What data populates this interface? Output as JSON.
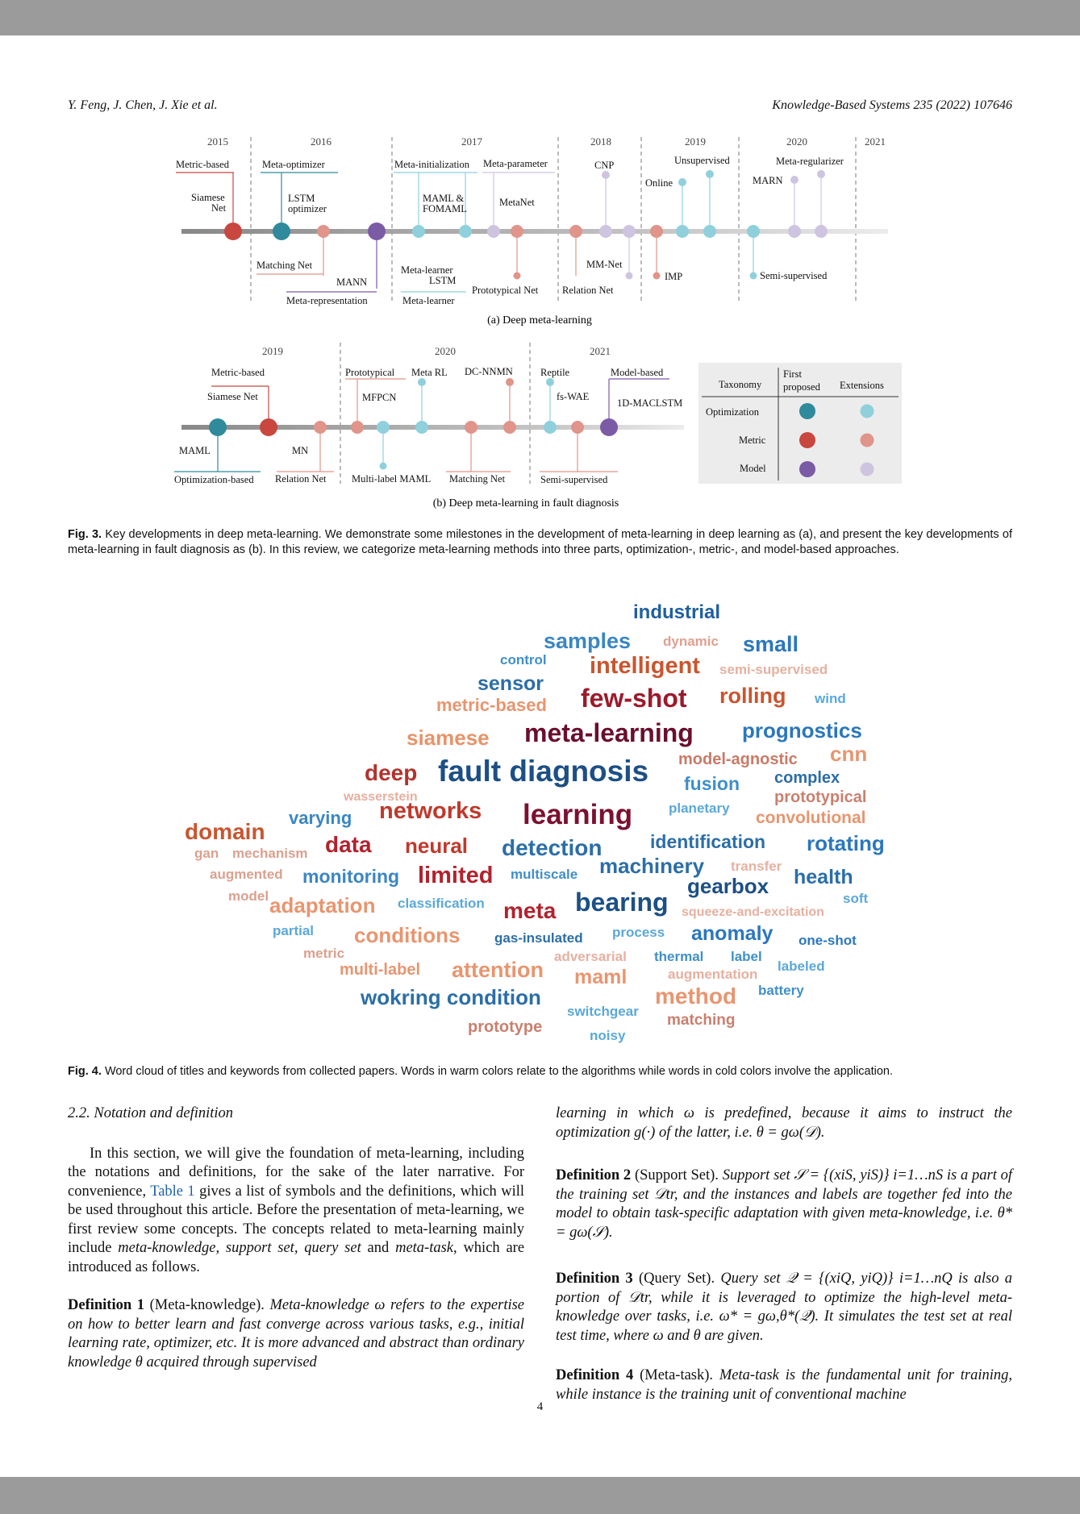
{
  "header": {
    "left": "Y. Feng, J. Chen, J. Xie et al.",
    "right": "Knowledge-Based Systems 235 (2022) 107646"
  },
  "fig3a": {
    "years": [
      "2015",
      "2016",
      "2017",
      "2018",
      "2019",
      "2020",
      "2021"
    ],
    "labels": {
      "metric_based": "Metric-based",
      "meta_optimizer": "Meta-optimizer",
      "meta_initialization": "Meta-initialization",
      "meta_parameter": "Meta-parameter",
      "cnp": "CNP",
      "unsupervised": "Unsupervised",
      "online": "Online",
      "meta_regularizer": "Meta-regularizer",
      "marn": "MARN",
      "siamese_net_1": "Siamese",
      "siamese_net_2": "Net",
      "lstm_opt_1": "LSTM",
      "lstm_opt_2": "optimizer",
      "maml_1": "MAML &",
      "maml_2": "FOMAML",
      "metanet": "MetaNet",
      "matching_net": "Matching Net",
      "mann": "MANN",
      "meta_representation": "Meta-representation",
      "meta_learner_lstm_1": "Meta-learner",
      "meta_learner_lstm_2": "LSTM",
      "meta_learner": "Meta-learner",
      "prototypical_net": "Prototypical Net",
      "relation_net": "Relation Net",
      "mm_net": "MM-Net",
      "imp": "IMP",
      "semi_supervised": "Semi-supervised"
    },
    "caption": "(a) Deep meta-learning"
  },
  "fig3b": {
    "years": [
      "2019",
      "2020",
      "2021"
    ],
    "labels": {
      "metric_based": "Metric-based",
      "siamese_net": "Siamese Net",
      "prototypical": "Prototypical",
      "mfpcn": "MFPCN",
      "meta_rl": "Meta RL",
      "dc_nnmn": "DC-NNMN",
      "reptile": "Reptile",
      "fs_wae": "fs-WAE",
      "model_based": "Model-based",
      "maclstm": "1D-MACLSTM",
      "maml": "MAML",
      "mn": "MN",
      "optimization_based": "Optimization-based",
      "relation_net": "Relation Net",
      "multi_label_maml": "Multi-label MAML",
      "matching_net": "Matching Net",
      "semi_supervised": "Semi-supervised"
    },
    "legend": {
      "taxonomy": "Taxonomy",
      "first_1": "First",
      "first_2": "proposed",
      "extensions": "Extensions",
      "rows": [
        "Optimization",
        "Metric",
        "Model"
      ]
    },
    "caption": "(b) Deep meta-learning in fault diagnosis"
  },
  "colors": {
    "optimization": "#2f8a9c",
    "optimization_ext": "#8fd0dc",
    "metric": "#c8473f",
    "metric_ext": "#e0948a",
    "model": "#7b5aa6",
    "model_ext": "#cfc4e0"
  },
  "fig3_caption": {
    "label": "Fig. 3.",
    "text": "Key developments in deep meta-learning. We demonstrate some milestones in the development of meta-learning in deep learning as (a), and present the key developments of meta-learning in fault diagnosis as (b). In this review, we categorize meta-learning methods into three parts, optimization-, metric-, and model-based approaches."
  },
  "wordcloud": {
    "words": [
      {
        "t": "industrial",
        "c": "#1f5fa0"
      },
      {
        "t": "samples",
        "c": "#3a86c4"
      },
      {
        "t": "dynamic",
        "c": "#e0a090"
      },
      {
        "t": "small",
        "c": "#2b77bd"
      },
      {
        "t": "control",
        "c": "#3f8fc9"
      },
      {
        "t": "intelligent",
        "c": "#c9552f"
      },
      {
        "t": "semi-supervised",
        "c": "#e6b0a0"
      },
      {
        "t": "sensor",
        "c": "#2b6ea8"
      },
      {
        "t": "metric-based",
        "c": "#e8956f"
      },
      {
        "t": "few-shot",
        "c": "#9c1a2c"
      },
      {
        "t": "rolling",
        "c": "#c9552f"
      },
      {
        "t": "wind",
        "c": "#5aa8d8"
      },
      {
        "t": "siamese",
        "c": "#e8936a"
      },
      {
        "t": "meta-learning",
        "c": "#6b0e2e"
      },
      {
        "t": "prognostics",
        "c": "#2b77bd"
      },
      {
        "t": "model-agnostic",
        "c": "#c97a67"
      },
      {
        "t": "cnn",
        "c": "#e8956f"
      },
      {
        "t": "deep",
        "c": "#b3332c"
      },
      {
        "t": "fault diagnosis",
        "c": "#1c4f85"
      },
      {
        "t": "fusion",
        "c": "#3f8fc9"
      },
      {
        "t": "complex",
        "c": "#2b6ea8"
      },
      {
        "t": "wasserstein",
        "c": "#e6b0a0"
      },
      {
        "t": "prototypical",
        "c": "#c9806f"
      },
      {
        "t": "varying",
        "c": "#3a86c4"
      },
      {
        "t": "networks",
        "c": "#c0392b"
      },
      {
        "t": "learning",
        "c": "#7b1030"
      },
      {
        "t": "planetary",
        "c": "#5aa8d8"
      },
      {
        "t": "convolutional",
        "c": "#e8956f"
      },
      {
        "t": "domain",
        "c": "#c9552f"
      },
      {
        "t": "data",
        "c": "#b3222c"
      },
      {
        "t": "neural",
        "c": "#c0392b"
      },
      {
        "t": "detection",
        "c": "#2b6ea8"
      },
      {
        "t": "identification",
        "c": "#2b6ea8"
      },
      {
        "t": "rotating",
        "c": "#2b77bd"
      },
      {
        "t": "gan",
        "c": "#dba08f"
      },
      {
        "t": "mechanism",
        "c": "#dba08f"
      },
      {
        "t": "machinery",
        "c": "#2b6ea8"
      },
      {
        "t": "transfer",
        "c": "#e6b0a0"
      },
      {
        "t": "augmented",
        "c": "#dba08f"
      },
      {
        "t": "monitoring",
        "c": "#3a86c4"
      },
      {
        "t": "limited",
        "c": "#b3222c"
      },
      {
        "t": "multiscale",
        "c": "#3f8fc9"
      },
      {
        "t": "gearbox",
        "c": "#1c4f85"
      },
      {
        "t": "health",
        "c": "#2b6ea8"
      },
      {
        "t": "model",
        "c": "#dba08f"
      },
      {
        "t": "soft",
        "c": "#5aa8d8"
      },
      {
        "t": "adaptation",
        "c": "#e8956f"
      },
      {
        "t": "classification",
        "c": "#5aa8d8"
      },
      {
        "t": "meta",
        "c": "#b3222c"
      },
      {
        "t": "bearing",
        "c": "#1c4f85"
      },
      {
        "t": "squeeze-and-excitation",
        "c": "#e6b0a0"
      },
      {
        "t": "partial",
        "c": "#5aa8d8"
      },
      {
        "t": "conditions",
        "c": "#e8956f"
      },
      {
        "t": "gas-insulated",
        "c": "#2b6ea8"
      },
      {
        "t": "process",
        "c": "#5aa8d8"
      },
      {
        "t": "anomaly",
        "c": "#2b77bd"
      },
      {
        "t": "one-shot",
        "c": "#2b77bd"
      },
      {
        "t": "metric",
        "c": "#dba08f"
      },
      {
        "t": "adversarial",
        "c": "#e6b0a0"
      },
      {
        "t": "thermal",
        "c": "#3f8fc9"
      },
      {
        "t": "label",
        "c": "#3f8fc9"
      },
      {
        "t": "labeled",
        "c": "#5aa8d8"
      },
      {
        "t": "multi-label",
        "c": "#e8956f"
      },
      {
        "t": "attention",
        "c": "#e8956f"
      },
      {
        "t": "maml",
        "c": "#e8956f"
      },
      {
        "t": "augmentation",
        "c": "#e6b0a0"
      },
      {
        "t": "battery",
        "c": "#3f8fc9"
      },
      {
        "t": "wokring condition",
        "c": "#2b6ea8"
      },
      {
        "t": "method",
        "c": "#e8956f"
      },
      {
        "t": "switchgear",
        "c": "#5aa8d8"
      },
      {
        "t": "matching",
        "c": "#c9806f"
      },
      {
        "t": "prototype",
        "c": "#c9806f"
      },
      {
        "t": "noisy",
        "c": "#5aa8d8"
      }
    ]
  },
  "fig4_caption": {
    "label": "Fig. 4.",
    "text": "Word cloud of titles and keywords from collected papers. Words in warm colors relate to the algorithms while words in cold colors involve the application."
  },
  "section": {
    "title": "2.2. Notation and definition",
    "para_1a": "In this section, we will give the foundation of meta-learning, including the notations and definitions, for the sake of the later narrative. For convenience,",
    "table_link": "Table 1",
    "para_1b": "gives a list of symbols and the definitions, which will be used throughout this article. Before the presentation of meta-learning, we first review some concepts. The concepts related to meta-learning mainly include",
    "para_1c_terms": "meta-knowledge, support set, query set",
    "para_1c_and": "and",
    "para_1c_last": "meta-task",
    "para_1d": ", which are introduced as follows.",
    "def1_label": "Definition 1",
    "def1_term": "(Meta-knowledge).",
    "def1_text": "Meta-knowledge ω refers to the expertise on how to better learn and fast converge across various tasks, e.g., initial learning rate, optimizer, etc. It is more advanced and abstract than ordinary knowledge θ acquired through supervised",
    "def1_cont": "learning in which ω is predefined, because it aims to instruct the optimization g(·) of the latter, i.e. θ = gω(𝒟).",
    "def2_label": "Definition 2",
    "def2_term": "(Support Set).",
    "def2_text": "Support set 𝒮 = {(xiS, yiS)} i=1…nS is a part of the training set 𝒟tr, and the instances and labels are together fed into the model to obtain task-specific adaptation with given meta-knowledge, i.e. θ* = gω(𝒮).",
    "def3_label": "Definition 3",
    "def3_term": "(Query Set).",
    "def3_text": "Query set 𝒬 = {(xiQ, yiQ)} i=1…nQ is also a portion of 𝒟tr, while it is leveraged to optimize the high-level meta-knowledge over tasks, i.e. ω* = gω,θ*(𝒬). It simulates the test set at real test time, where ω and θ are given.",
    "def4_label": "Definition 4",
    "def4_term": "(Meta-task).",
    "def4_text": "Meta-task is the fundamental unit for training, while instance is the training unit of conventional machine"
  },
  "page_number": "4"
}
